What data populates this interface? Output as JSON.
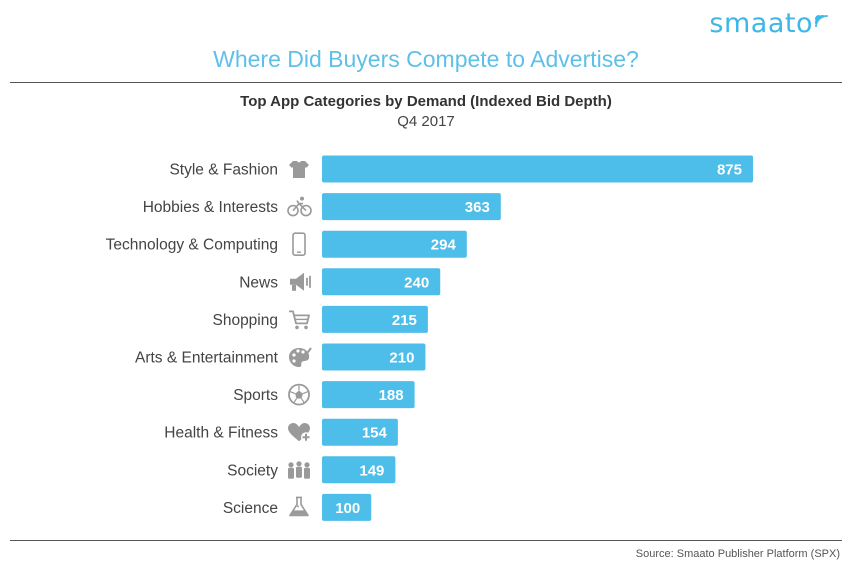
{
  "brand": {
    "name": "smaato",
    "color": "#3cb8e8"
  },
  "header": {
    "title": "Where Did Buyers Compete to Advertise?"
  },
  "footer": {
    "source": "Source: Smaato Publisher Platform (SPX)"
  },
  "colors": {
    "bar": "#4dbde9",
    "icon": "#9a9a9a",
    "label": "#444444",
    "value": "#ffffff"
  },
  "chart_data": {
    "type": "bar",
    "orientation": "horizontal",
    "title": "Top App Categories by Demand (Indexed Bid Depth)",
    "subtitle": "Q4 2017",
    "xlim": [
      0,
      875
    ],
    "grid": false,
    "data_labels": true,
    "categories": [
      "Style & Fashion",
      "Hobbies & Interests",
      "Technology & Computing",
      "News",
      "Shopping",
      "Arts & Entertainment",
      "Sports",
      "Health & Fitness",
      "Society",
      "Science"
    ],
    "values": [
      875,
      363,
      294,
      240,
      215,
      210,
      188,
      154,
      149,
      100
    ],
    "icons": [
      "shirt-icon",
      "bicycle-icon",
      "smartphone-icon",
      "megaphone-icon",
      "shopping-cart-icon",
      "palette-icon",
      "soccer-ball-icon",
      "heart-plus-icon",
      "people-icon",
      "flask-icon"
    ]
  }
}
